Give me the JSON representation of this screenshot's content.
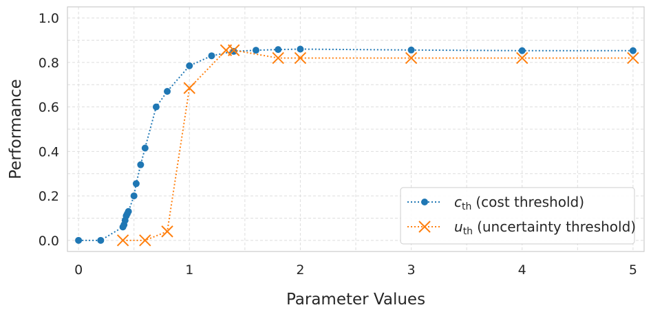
{
  "chart_data": {
    "type": "line",
    "xlabel": "Parameter Values",
    "ylabel": "Performance",
    "xlim": [
      -0.1,
      5.1
    ],
    "ylim": [
      -0.05,
      1.05
    ],
    "xticks": [
      0,
      1,
      2,
      3,
      4,
      5
    ],
    "xtick_labels": [
      "0",
      "1",
      "2",
      "3",
      "4",
      "5"
    ],
    "yticks": [
      0.0,
      0.2,
      0.4,
      0.6,
      0.8,
      1.0
    ],
    "ytick_labels": [
      "0.0",
      "0.2",
      "0.4",
      "0.6",
      "0.8",
      "1.0"
    ],
    "grid": true,
    "legend_position": "bottom-right",
    "series": [
      {
        "name": "c_th (cost threshold)",
        "legend_symbol": "c",
        "legend_subscript": "th",
        "legend_rest": "(cost threshold)",
        "color": "#1f77b4",
        "marker": "circle",
        "linestyle": "dotted",
        "x": [
          0.0,
          0.2,
          0.4,
          0.41,
          0.42,
          0.43,
          0.44,
          0.45,
          0.5,
          0.52,
          0.56,
          0.6,
          0.7,
          0.8,
          1.0,
          1.2,
          1.4,
          1.6,
          1.8,
          2.0,
          3.0,
          4.0,
          5.0
        ],
        "y": [
          0.0,
          0.0,
          0.06,
          0.07,
          0.09,
          0.11,
          0.12,
          0.13,
          0.2,
          0.255,
          0.34,
          0.415,
          0.6,
          0.67,
          0.785,
          0.83,
          0.85,
          0.855,
          0.858,
          0.86,
          0.856,
          0.853,
          0.853
        ]
      },
      {
        "name": "u_th (uncertainty threshold)",
        "legend_symbol": "u",
        "legend_subscript": "th",
        "legend_rest": "(uncertainty threshold)",
        "color": "#ff7f0e",
        "marker": "x",
        "linestyle": "dotted",
        "x": [
          0.4,
          0.6,
          0.8,
          1.0,
          1.33,
          1.4,
          1.8,
          2.0,
          3.0,
          4.0,
          5.0
        ],
        "y": [
          0.0,
          0.0,
          0.04,
          0.685,
          0.855,
          0.855,
          0.82,
          0.82,
          0.82,
          0.82,
          0.82
        ]
      }
    ]
  }
}
